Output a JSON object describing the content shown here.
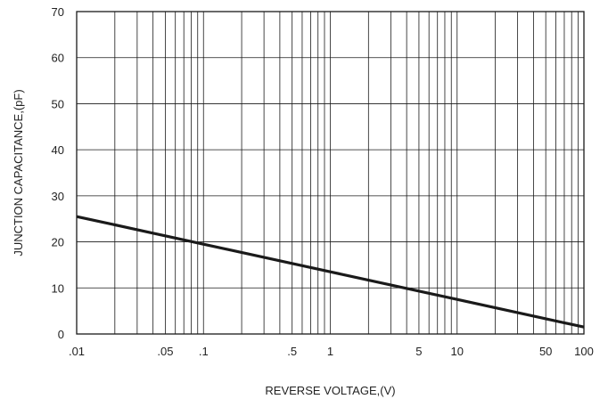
{
  "chart_data": {
    "type": "line",
    "title": "",
    "xlabel": "REVERSE VOLTAGE,(V)",
    "ylabel": "JUNCTION CAPACITANCE,(pF)",
    "x_scale": "log",
    "xlim": [
      0.01,
      100
    ],
    "ylim": [
      0,
      70
    ],
    "grid": true,
    "x_tick_labels": [
      ".01",
      ".05",
      ".1",
      ".5",
      "1",
      "5",
      "10",
      "50",
      "100"
    ],
    "x_tick_values": [
      0.01,
      0.05,
      0.1,
      0.5,
      1,
      5,
      10,
      50,
      100
    ],
    "y_tick_labels": [
      "0",
      "10",
      "20",
      "30",
      "40",
      "50",
      "60",
      "70"
    ],
    "y_tick_values": [
      0,
      10,
      20,
      30,
      40,
      50,
      60,
      70
    ],
    "series": [
      {
        "x": [
          0.01,
          0.1,
          1,
          10,
          100
        ],
        "y": [
          25.5,
          19.5,
          13.5,
          7.5,
          1.5
        ],
        "color": "#1a1a1a"
      }
    ]
  }
}
